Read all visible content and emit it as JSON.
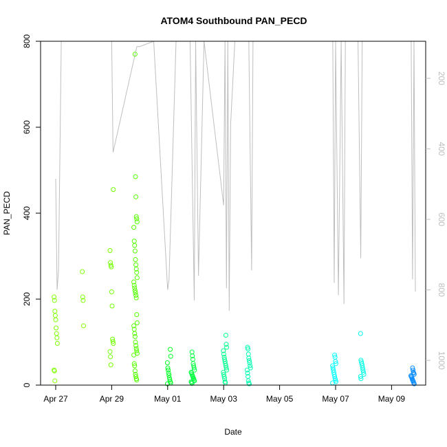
{
  "chart_data": {
    "type": "scatter",
    "title": "ATOM4 Southbound PAN_PECD",
    "xlabel": "Date",
    "ylabel": "PAN_PECD",
    "xlim_days": [
      -0.45,
      12.65
    ],
    "ylim": [
      0,
      800
    ],
    "x_ticks": [
      {
        "day": 0,
        "label": "Apr 27"
      },
      {
        "day": 2,
        "label": "Apr 29"
      },
      {
        "day": 4,
        "label": "May 01"
      },
      {
        "day": 6,
        "label": "May 03"
      },
      {
        "day": 8,
        "label": "May 05"
      },
      {
        "day": 10,
        "label": "May 07"
      },
      {
        "day": 12,
        "label": "May 09"
      }
    ],
    "y_ticks": [
      0,
      200,
      400,
      600,
      800
    ],
    "secondary_axis": {
      "description": "altitude profile (gray line), inverted",
      "range": [
        95,
        1070
      ],
      "ticks": [
        200,
        400,
        600,
        800,
        1000
      ],
      "color": "#bebebe"
    },
    "series": [
      {
        "name": "PAN_PECD",
        "marker": "open-circle",
        "clusters": [
          {
            "day": 0.0,
            "color": "#80ff00",
            "values": [
              205,
              197,
              172,
              162,
              152,
              133,
              120,
              110,
              97,
              35,
              33,
              10
            ]
          },
          {
            "day": 0.95,
            "color": "#80ff00",
            "values": [
              264,
              205,
              197,
              138
            ]
          },
          {
            "day": 2.0,
            "color": "#73ff00",
            "values": [
              455,
              313,
              285,
              279,
              275,
              217,
              184,
              107,
              102,
              97,
              78,
              66,
              47
            ]
          },
          {
            "day": 2.85,
            "color": "#55ff00",
            "values": [
              770,
              485,
              438,
              392,
              387,
              380,
              367,
              335,
              325,
              312,
              292,
              280,
              270,
              262,
              250,
              240,
              232,
              226,
              220,
              215,
              209,
              203,
              164,
              145,
              138,
              130,
              120,
              113,
              100,
              92,
              85,
              80,
              74,
              70,
              50,
              45,
              33,
              25,
              20,
              15,
              12
            ]
          },
          {
            "day": 4.05,
            "color": "#00ff25",
            "values": [
              83,
              67,
              52,
              40,
              35,
              28,
              23,
              17,
              12,
              8,
              5,
              3
            ]
          },
          {
            "day": 4.9,
            "color": "#00ff40",
            "values": [
              77,
              68,
              60,
              50,
              45,
              40,
              35,
              30,
              28,
              25,
              22,
              20,
              17,
              15,
              12,
              10,
              8,
              6,
              4
            ]
          },
          {
            "day": 6.05,
            "color": "#00ff90",
            "values": [
              116,
              95,
              88,
              80,
              72,
              65,
              60,
              55,
              50,
              45,
              40,
              35,
              30,
              25,
              20,
              15,
              8,
              5
            ]
          },
          {
            "day": 6.9,
            "color": "#00ffb0",
            "values": [
              88,
              84,
              72,
              63,
              57,
              52,
              45,
              40,
              35,
              28,
              20,
              10,
              5,
              3
            ]
          },
          {
            "day": 9.95,
            "color": "#00ffff",
            "values": [
              70,
              65,
              55,
              50,
              45,
              40,
              35,
              30,
              25,
              20,
              15,
              12,
              8,
              5
            ]
          },
          {
            "day": 10.95,
            "color": "#00ffe8",
            "values": [
              120,
              58,
              54,
              50,
              45,
              40,
              35,
              30,
              25,
              20,
              15
            ]
          },
          {
            "day": 12.75,
            "color": "#0a8cff",
            "values": [
              40,
              35,
              30,
              28,
              25,
              22,
              20,
              18,
              15,
              12,
              10,
              8,
              5,
              3
            ]
          }
        ]
      },
      {
        "name": "altitude",
        "color": "#bebebe",
        "axis": "secondary",
        "points": [
          [
            0.0,
            485
          ],
          [
            0.05,
            800
          ],
          [
            0.1,
            745
          ],
          [
            0.2,
            95
          ],
          [
            0.7,
            95
          ],
          [
            1.1,
            95
          ],
          [
            2.0,
            95
          ],
          [
            2.05,
            410
          ],
          [
            2.9,
            110
          ],
          [
            3.0,
            110
          ],
          [
            3.5,
            95
          ],
          [
            4.0,
            800
          ],
          [
            4.05,
            770
          ],
          [
            4.3,
            95
          ],
          [
            4.4,
            95
          ],
          [
            4.8,
            95
          ],
          [
            4.95,
            830
          ],
          [
            5.0,
            95
          ],
          [
            5.1,
            760
          ],
          [
            5.3,
            95
          ],
          [
            6.0,
            560
          ],
          [
            6.05,
            95
          ],
          [
            6.1,
            795
          ],
          [
            6.15,
            95
          ],
          [
            6.2,
            860
          ],
          [
            6.25,
            330
          ],
          [
            6.4,
            95
          ],
          [
            6.9,
            95
          ],
          [
            7.0,
            745
          ],
          [
            7.05,
            95
          ],
          [
            9.9,
            95
          ],
          [
            9.95,
            780
          ],
          [
            10.0,
            95
          ],
          [
            10.1,
            815
          ],
          [
            10.2,
            95
          ],
          [
            10.3,
            840
          ],
          [
            10.35,
            95
          ],
          [
            10.8,
            95
          ],
          [
            10.9,
            710
          ],
          [
            10.95,
            95
          ],
          [
            12.7,
            95
          ],
          [
            12.75,
            770
          ],
          [
            12.8,
            95
          ],
          [
            12.85,
            805
          ]
        ]
      }
    ]
  }
}
